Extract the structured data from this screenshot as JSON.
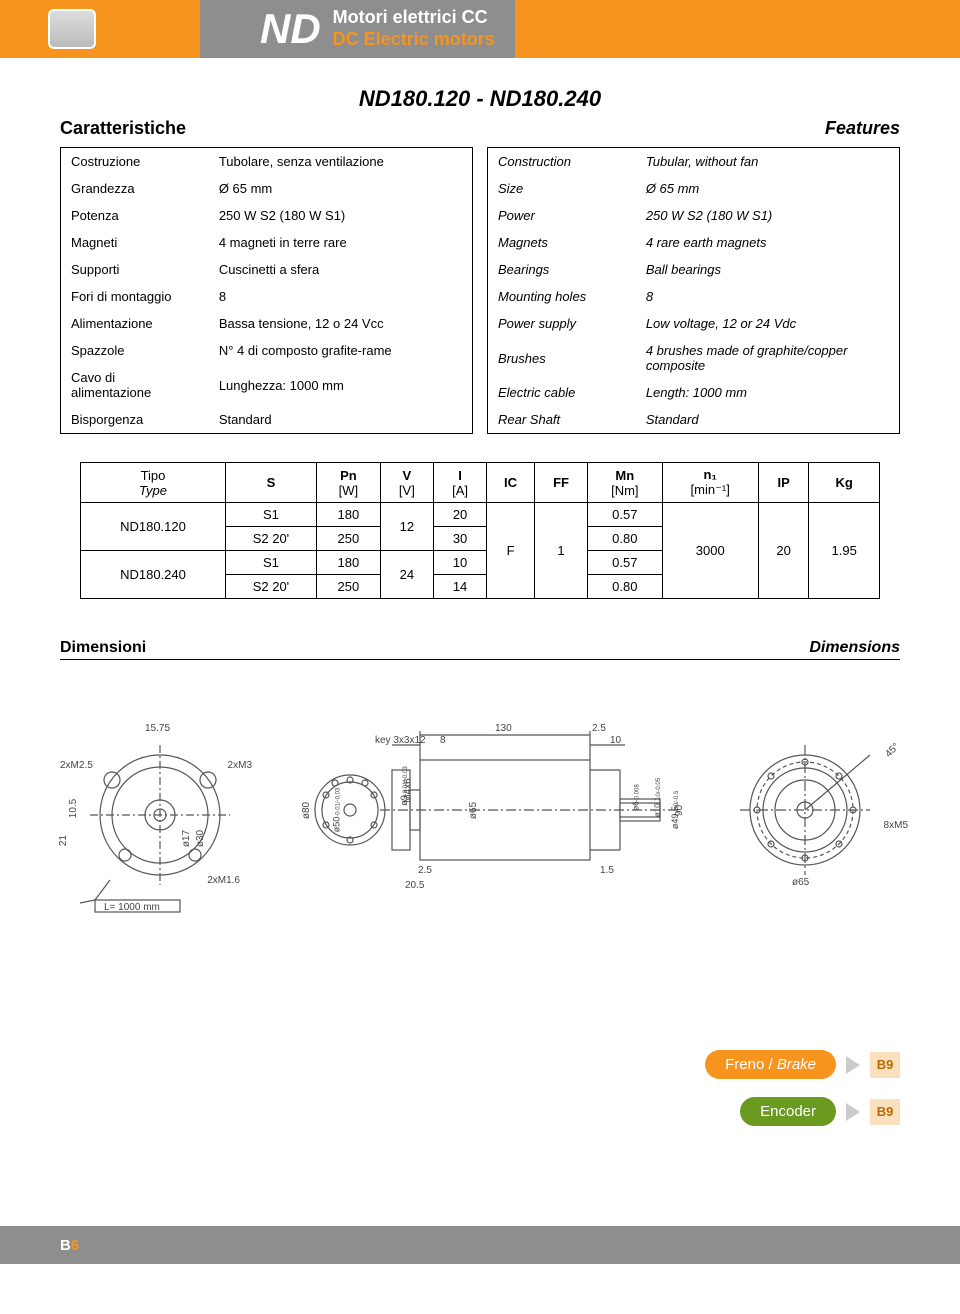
{
  "header": {
    "nd": "ND",
    "title_it": "Motori elettrici CC",
    "title_en": "DC Electric motors"
  },
  "model_code": "ND180.120 - ND180.240",
  "section1": {
    "it": "Caratteristiche",
    "en": "Features"
  },
  "char_it": [
    [
      "Costruzione",
      "Tubolare, senza ventilazione"
    ],
    [
      "Grandezza",
      "Ø 65 mm"
    ],
    [
      "Potenza",
      "250 W S2 (180 W S1)"
    ],
    [
      "Magneti",
      "4 magneti in terre rare"
    ],
    [
      "Supporti",
      "Cuscinetti a sfera"
    ],
    [
      "Fori di montaggio",
      "8"
    ],
    [
      "Alimentazione",
      "Bassa tensione, 12 o 24 Vcc"
    ],
    [
      "Spazzole",
      "N° 4 di composto grafite-rame"
    ],
    [
      "Cavo di alimentazione",
      "Lunghezza: 1000 mm"
    ],
    [
      "Bisporgenza",
      "Standard"
    ]
  ],
  "char_en": [
    [
      "Construction",
      "Tubular, without fan"
    ],
    [
      "Size",
      "Ø 65 mm"
    ],
    [
      "Power",
      "250 W S2 (180 W S1)"
    ],
    [
      "Magnets",
      "4 rare earth magnets"
    ],
    [
      "Bearings",
      "Ball bearings"
    ],
    [
      "Mounting holes",
      "8"
    ],
    [
      "Power supply",
      "Low voltage, 12 or 24 Vdc"
    ],
    [
      "Brushes",
      "4 brushes made of graphite/copper composite"
    ],
    [
      "Electric cable",
      "Length: 1000 mm"
    ],
    [
      "Rear Shaft",
      "Standard"
    ]
  ],
  "data_headers": {
    "tipo_it": "Tipo",
    "tipo_en": "Type",
    "s": "S",
    "pn": "Pn",
    "pn_u": "[W]",
    "v": "V",
    "v_u": "[V]",
    "i": "I",
    "i_u": "[A]",
    "ic": "IC",
    "ff": "FF",
    "mn": "Mn",
    "mn_u": "[Nm]",
    "n1": "n₁",
    "n1_u": "[min⁻¹]",
    "ip": "IP",
    "kg": "Kg"
  },
  "data_rows": {
    "type1": "ND180.120",
    "type2": "ND180.240",
    "s1": "S1",
    "s2": "S2 20'",
    "pn_s1": "180",
    "pn_s2": "250",
    "v12": "12",
    "v24": "24",
    "i1": "20",
    "i2": "30",
    "i3": "10",
    "i4": "14",
    "ic": "F",
    "ff": "1",
    "mn1": "0.57",
    "mn2": "0.80",
    "mn3": "0.57",
    "mn4": "0.80",
    "n1": "3000",
    "ip": "20",
    "kg": "1.95"
  },
  "section2": {
    "it": "Dimensioni",
    "en": "Dimensions"
  },
  "dim_labels": {
    "l1575": "15.75",
    "m25": "2xM2.5",
    "m3": "2xM3",
    "n105": "10.5",
    "n21": "21",
    "d17": "ø17",
    "d30": "ø30",
    "m16": "2xM1.6",
    "l1000": "L= 1000 mm",
    "key": "key 3x3x12",
    "n8": "8",
    "d80": "ø80",
    "d50": "ø50",
    "d9": "ø9",
    "m4x6": "M4x6",
    "n205": "20.5",
    "n25": "2.5",
    "n130": "130",
    "n10": "10",
    "d65": "ø65",
    "n15": "1.5",
    "d6": "ø6",
    "d101": "ø10.1",
    "d495": "ø49.5",
    "n90": "90",
    "n45": "45°",
    "m5": "8xM5",
    "ftol1": "-0.01/-0.03",
    "ftol2": "-0.008",
    "ftol3": "0/-0.05",
    "ftol4": "0/-0.5"
  },
  "pills": {
    "freno_it": "Freno",
    "freno_en": "Brake",
    "encoder": "Encoder",
    "tag": "B9"
  },
  "footer": {
    "b": "B",
    "n": "6"
  }
}
